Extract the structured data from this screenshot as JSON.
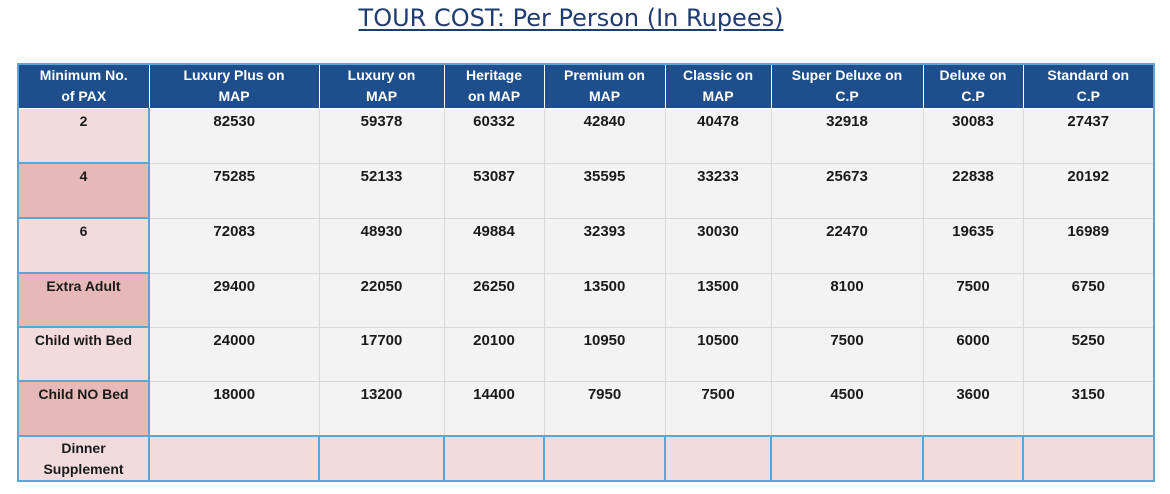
{
  "title": "TOUR COST: Per Person (In Rupees)",
  "table": {
    "headers": [
      [
        "Minimum No.",
        "of PAX"
      ],
      [
        "Luxury Plus on",
        "MAP"
      ],
      [
        "Luxury on",
        "MAP"
      ],
      [
        "Heritage",
        "on MAP"
      ],
      [
        "Premium on",
        "MAP"
      ],
      [
        "Classic on",
        "MAP"
      ],
      [
        "Super Deluxe on",
        "C.P"
      ],
      [
        "Deluxe on",
        "C.P"
      ],
      [
        "Standard on",
        "C.P"
      ]
    ],
    "rows": [
      {
        "label": "2",
        "values": [
          "82530",
          "59378",
          "60332",
          "42840",
          "40478",
          "32918",
          "30083",
          "27437"
        ]
      },
      {
        "label": "4",
        "values": [
          "75285",
          "52133",
          "53087",
          "35595",
          "33233",
          "25673",
          "22838",
          "20192"
        ]
      },
      {
        "label": "6",
        "values": [
          "72083",
          "48930",
          "49884",
          "32393",
          "30030",
          "22470",
          "19635",
          "16989"
        ]
      },
      {
        "label": "Extra Adult",
        "values": [
          "29400",
          "22050",
          "26250",
          "13500",
          "13500",
          "8100",
          "7500",
          "6750"
        ]
      },
      {
        "label": "Child with Bed",
        "values": [
          "24000",
          "17700",
          "20100",
          "10950",
          "10500",
          "7500",
          "6000",
          "5250"
        ]
      },
      {
        "label": "Child NO Bed",
        "values": [
          "18000",
          "13200",
          "14400",
          "7950",
          "7500",
          "4500",
          "3600",
          "3150"
        ]
      }
    ],
    "dinner_row": {
      "label": [
        "Dinner",
        "Supplement"
      ],
      "values": [
        "",
        "",
        "",
        "",
        "",
        "",
        "",
        ""
      ]
    }
  },
  "colors": {
    "title": "#1f3c70",
    "header_bg": "#1f4e8c",
    "border_accent": "#5aa7d7",
    "label_light": "#f2dcdb",
    "label_dark": "#e6b8b7",
    "cell_bg": "#f3f3f3"
  }
}
